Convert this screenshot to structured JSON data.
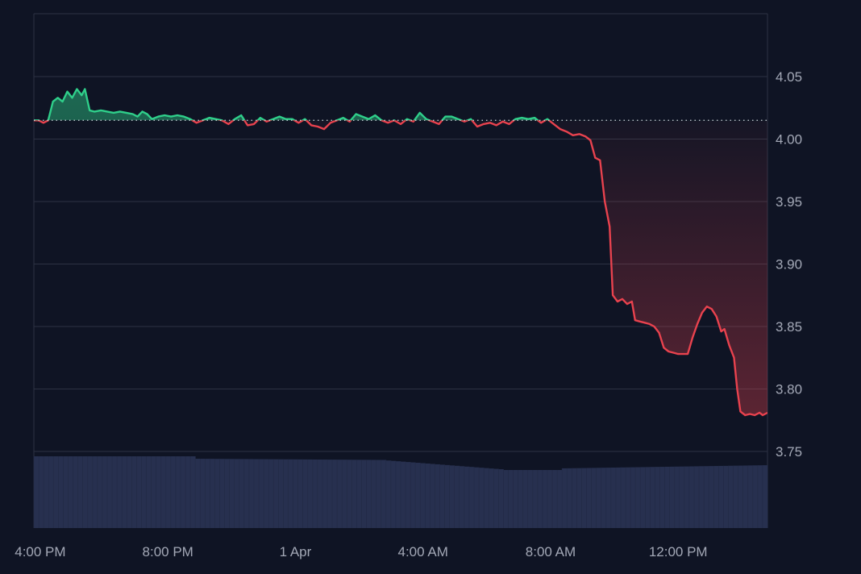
{
  "chart_data": {
    "type": "line",
    "title": "",
    "xlabel": "",
    "ylabel": "",
    "ylim": [
      3.7,
      4.1
    ],
    "reference_value": 4.015,
    "x_ticks": [
      "4:00 PM",
      "8:00 PM",
      "1 Apr",
      "4:00 AM",
      "8:00 AM",
      "12:00 PM"
    ],
    "y_ticks": [
      "4.05",
      "4.00",
      "3.95",
      "3.90",
      "3.85",
      "3.80",
      "3.75"
    ],
    "y_tick_values": [
      4.05,
      4.0,
      3.95,
      3.9,
      3.85,
      3.8,
      3.75
    ],
    "grid": true,
    "colors": {
      "background": "#0f1424",
      "grid": "#2c3243",
      "up": "#2fcf8a",
      "down": "#e8424e",
      "volume": "#27304f",
      "reference": "#cfd3dc",
      "tick_text": "#a3a8b6"
    },
    "x_range_hours": [
      15.8,
      38.8
    ],
    "x_tick_hours": [
      16,
      20,
      24,
      28,
      32,
      36
    ],
    "series": [
      {
        "values": [
          [
            15.8,
            4.015
          ],
          [
            15.95,
            4.015
          ],
          [
            16.1,
            4.013
          ],
          [
            16.25,
            4.015
          ],
          [
            16.4,
            4.03
          ],
          [
            16.55,
            4.033
          ],
          [
            16.7,
            4.03
          ],
          [
            16.85,
            4.038
          ],
          [
            17.0,
            4.033
          ],
          [
            17.15,
            4.04
          ],
          [
            17.3,
            4.035
          ],
          [
            17.4,
            4.04
          ],
          [
            17.55,
            4.023
          ],
          [
            17.7,
            4.022
          ],
          [
            17.9,
            4.023
          ],
          [
            18.1,
            4.022
          ],
          [
            18.3,
            4.021
          ],
          [
            18.5,
            4.022
          ],
          [
            18.7,
            4.021
          ],
          [
            18.9,
            4.02
          ],
          [
            19.05,
            4.018
          ],
          [
            19.2,
            4.022
          ],
          [
            19.35,
            4.02
          ],
          [
            19.5,
            4.016
          ],
          [
            19.7,
            4.018
          ],
          [
            19.9,
            4.019
          ],
          [
            20.1,
            4.018
          ],
          [
            20.3,
            4.019
          ],
          [
            20.5,
            4.018
          ],
          [
            20.7,
            4.016
          ],
          [
            20.9,
            4.013
          ],
          [
            21.1,
            4.015
          ],
          [
            21.3,
            4.017
          ],
          [
            21.5,
            4.016
          ],
          [
            21.7,
            4.015
          ],
          [
            21.9,
            4.012
          ],
          [
            22.1,
            4.016
          ],
          [
            22.3,
            4.019
          ],
          [
            22.5,
            4.011
          ],
          [
            22.7,
            4.012
          ],
          [
            22.9,
            4.017
          ],
          [
            23.1,
            4.014
          ],
          [
            23.3,
            4.016
          ],
          [
            23.5,
            4.018
          ],
          [
            23.7,
            4.016
          ],
          [
            23.9,
            4.016
          ],
          [
            24.1,
            4.013
          ],
          [
            24.3,
            4.016
          ],
          [
            24.5,
            4.011
          ],
          [
            24.7,
            4.01
          ],
          [
            24.9,
            4.008
          ],
          [
            25.1,
            4.013
          ],
          [
            25.3,
            4.015
          ],
          [
            25.5,
            4.017
          ],
          [
            25.7,
            4.014
          ],
          [
            25.9,
            4.02
          ],
          [
            26.1,
            4.018
          ],
          [
            26.3,
            4.016
          ],
          [
            26.5,
            4.019
          ],
          [
            26.7,
            4.015
          ],
          [
            26.9,
            4.013
          ],
          [
            27.1,
            4.015
          ],
          [
            27.3,
            4.012
          ],
          [
            27.5,
            4.016
          ],
          [
            27.7,
            4.014
          ],
          [
            27.9,
            4.021
          ],
          [
            28.1,
            4.016
          ],
          [
            28.3,
            4.014
          ],
          [
            28.5,
            4.012
          ],
          [
            28.7,
            4.018
          ],
          [
            28.9,
            4.018
          ],
          [
            29.1,
            4.016
          ],
          [
            29.3,
            4.014
          ],
          [
            29.5,
            4.016
          ],
          [
            29.7,
            4.01
          ],
          [
            29.9,
            4.012
          ],
          [
            30.1,
            4.013
          ],
          [
            30.3,
            4.011
          ],
          [
            30.5,
            4.014
          ],
          [
            30.7,
            4.012
          ],
          [
            30.9,
            4.016
          ],
          [
            31.1,
            4.017
          ],
          [
            31.3,
            4.016
          ],
          [
            31.5,
            4.017
          ],
          [
            31.7,
            4.013
          ],
          [
            31.9,
            4.016
          ],
          [
            32.1,
            4.012
          ],
          [
            32.3,
            4.008
          ],
          [
            32.5,
            4.006
          ],
          [
            32.7,
            4.003
          ],
          [
            32.9,
            4.004
          ],
          [
            33.1,
            4.002
          ],
          [
            33.25,
            3.999
          ],
          [
            33.4,
            3.985
          ],
          [
            33.55,
            3.983
          ],
          [
            33.7,
            3.95
          ],
          [
            33.85,
            3.93
          ],
          [
            33.95,
            3.875
          ],
          [
            34.1,
            3.87
          ],
          [
            34.25,
            3.872
          ],
          [
            34.4,
            3.868
          ],
          [
            34.55,
            3.87
          ],
          [
            34.65,
            3.855
          ],
          [
            34.8,
            3.854
          ],
          [
            34.95,
            3.853
          ],
          [
            35.1,
            3.852
          ],
          [
            35.25,
            3.85
          ],
          [
            35.4,
            3.845
          ],
          [
            35.55,
            3.833
          ],
          [
            35.7,
            3.83
          ],
          [
            35.85,
            3.829
          ],
          [
            36.0,
            3.828
          ],
          [
            36.15,
            3.828
          ],
          [
            36.3,
            3.828
          ],
          [
            36.45,
            3.841
          ],
          [
            36.6,
            3.852
          ],
          [
            36.75,
            3.861
          ],
          [
            36.9,
            3.866
          ],
          [
            37.05,
            3.864
          ],
          [
            37.2,
            3.858
          ],
          [
            37.35,
            3.846
          ],
          [
            37.45,
            3.848
          ],
          [
            37.6,
            3.835
          ],
          [
            37.75,
            3.825
          ],
          [
            37.85,
            3.8
          ],
          [
            37.95,
            3.782
          ],
          [
            38.1,
            3.779
          ],
          [
            38.25,
            3.78
          ],
          [
            38.4,
            3.779
          ],
          [
            38.55,
            3.781
          ],
          [
            38.65,
            3.779
          ],
          [
            38.8,
            3.781
          ]
        ]
      }
    ]
  }
}
